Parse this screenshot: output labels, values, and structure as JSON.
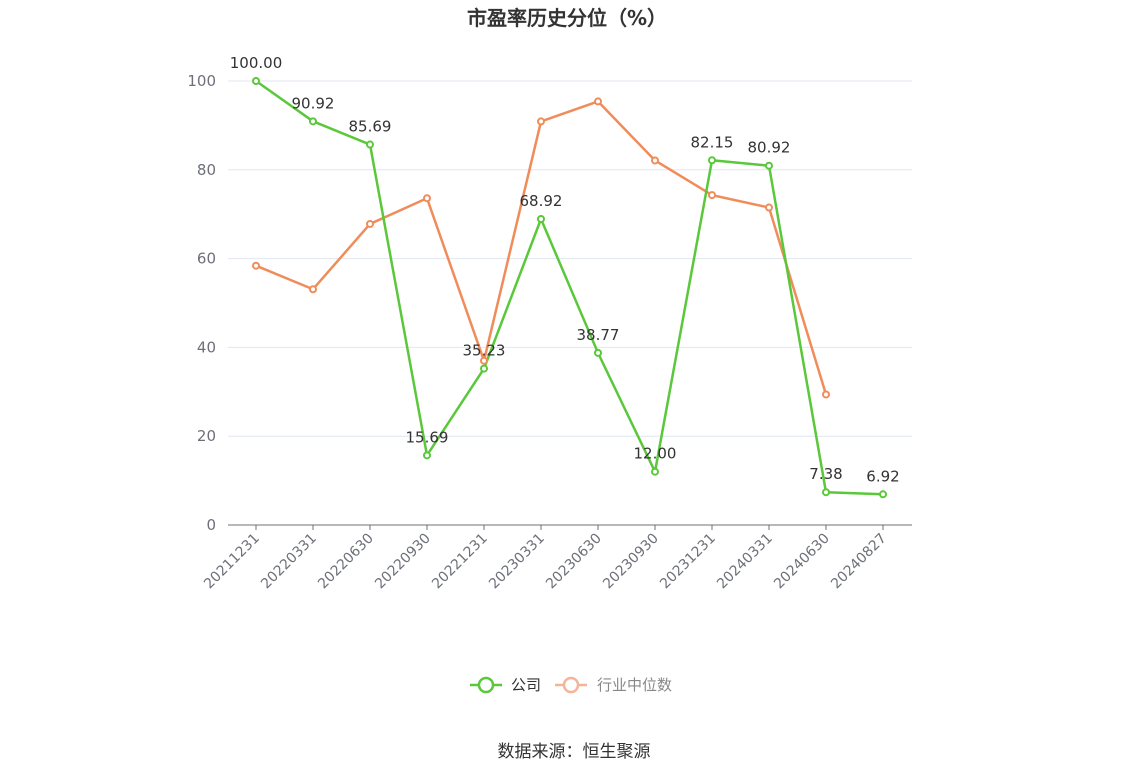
{
  "chart_data": {
    "type": "line",
    "title": "市盈率历史分位（%）",
    "x": [
      "20211231",
      "20220331",
      "20220630",
      "20220930",
      "20221231",
      "20230331",
      "20230630",
      "20230930",
      "20231231",
      "20240331",
      "20240630",
      "20240827"
    ],
    "ylim": [
      0,
      100
    ],
    "yticks": [
      0,
      20,
      40,
      60,
      80,
      100
    ],
    "grid": true,
    "legend_position": "bottom-center",
    "series": [
      {
        "name": "公司",
        "color": "#5ac83a",
        "values": [
          100.0,
          90.92,
          85.69,
          15.69,
          35.23,
          68.92,
          38.77,
          12.0,
          82.15,
          80.92,
          7.38,
          6.92
        ],
        "labels": [
          "100.00",
          "90.92",
          "85.69",
          "15.69",
          "35.23",
          "68.92",
          "38.77",
          "12.00",
          "82.15",
          "80.92",
          "7.38",
          "6.92"
        ]
      },
      {
        "name": "行业中位数",
        "color": "#f08c5a",
        "values": [
          58.4,
          53.1,
          67.8,
          73.6,
          37.0,
          90.9,
          95.4,
          82.1,
          74.3,
          71.5,
          29.4,
          null
        ]
      }
    ]
  },
  "source": "数据来源：恒生聚源"
}
